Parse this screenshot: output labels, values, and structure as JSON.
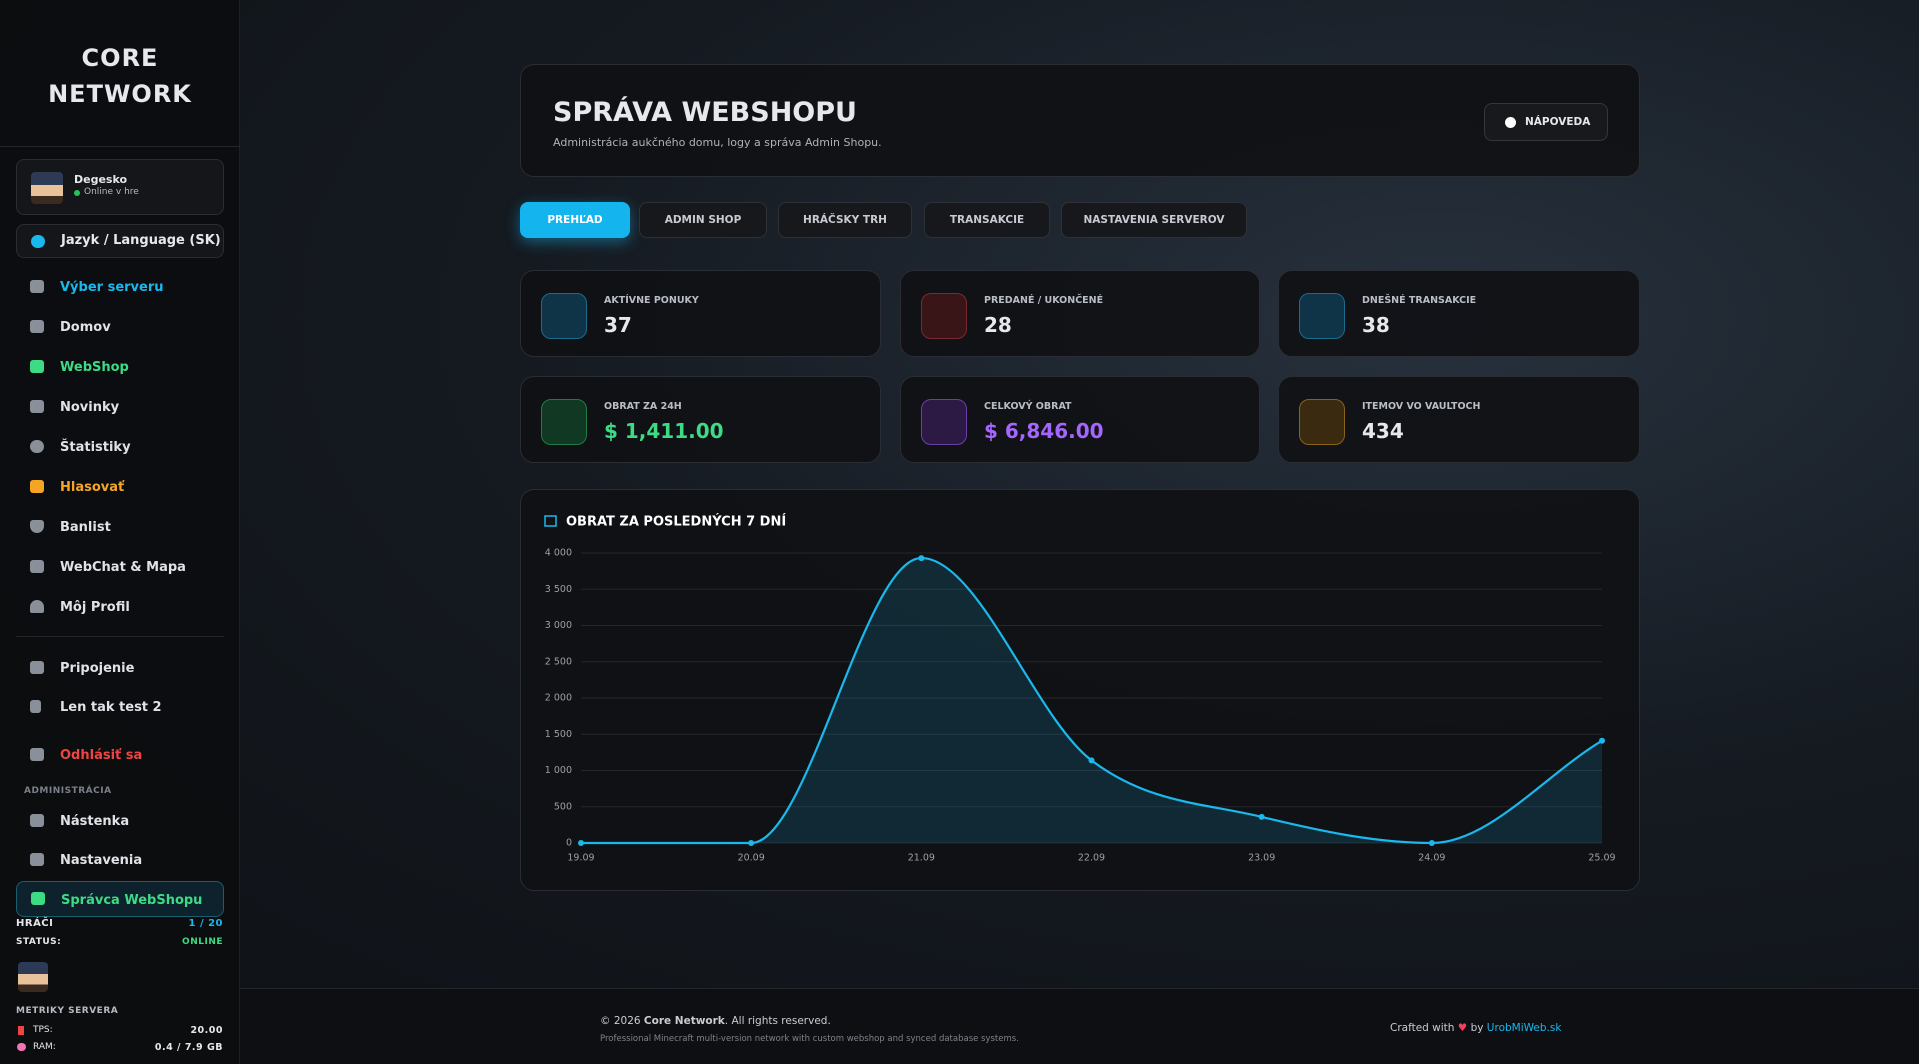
{
  "sidebar": {
    "brand": "CORE NETWORK",
    "user": {
      "name": "Degesko",
      "status": "Online v hre"
    },
    "language": "Jazyk / Language (SK)",
    "nav": [
      "Výber serveru",
      "Domov",
      "WebShop",
      "Novinky",
      "Štatistiky",
      "Hlasovať",
      "Banlist",
      "WebChat & Mapa",
      "Môj Profil"
    ],
    "extra": [
      "Pripojenie",
      "Len tak test 2"
    ],
    "logout": "Odhlásiť sa",
    "admin_heading": "ADMINISTRÁCIA",
    "admin": [
      "Nástenka",
      "Nastavenia",
      "Správca WebShopu"
    ],
    "players_label": "HRÁČI",
    "players_value": "1 / 20",
    "status_label": "STATUS:",
    "status_value": "ONLINE",
    "metrics_heading": "METRIKY SERVERA",
    "tps_label": "TPS:",
    "tps_value": "20.00",
    "ram_label": "RAM:",
    "ram_value": "0.4 / 7.9 GB"
  },
  "header": {
    "title": "SPRÁVA WEBSHOPU",
    "subtitle": "Administrácia aukčného domu, logy a správa Admin Shopu.",
    "help": "NÁPOVEDA"
  },
  "tabs": [
    "PREHĽAD",
    "ADMIN SHOP",
    "HRÁČSKY TRH",
    "TRANSAKCIE",
    "NASTAVENIA SERVEROV"
  ],
  "stats": [
    {
      "label": "AKTÍVNE PONUKY",
      "value": 37
    },
    {
      "label": "PREDANÉ / UKONČENÉ",
      "value": 28
    },
    {
      "label": "DNEŠNÉ TRANSAKCIE",
      "value": 38
    },
    {
      "label": "OBRAT ZA 24H",
      "value": "$ 1,411.00"
    },
    {
      "label": "CELKOVÝ OBRAT",
      "value": "$ 6,846.00"
    },
    {
      "label": "ITEMOV VO VAULTOCH",
      "value": 434
    }
  ],
  "chart_data": {
    "type": "area",
    "title": "OBRAT ZA POSLEDNÝCH 7 DNÍ",
    "categories": [
      "19.09",
      "20.09",
      "21.09",
      "22.09",
      "23.09",
      "24.09",
      "25.09"
    ],
    "values": [
      0,
      0,
      3930,
      1140,
      360,
      0,
      1411
    ],
    "color": "#1ab8ec",
    "ylim": [
      0,
      4000
    ],
    "yticks": [
      0,
      500,
      {
        "value": 1000,
        "label": "1 000"
      },
      {
        "value": 1500,
        "label": "1 500"
      },
      {
        "value": 2000,
        "label": "2 000"
      },
      {
        "value": 2500,
        "label": "2 500"
      },
      {
        "value": 3000,
        "label": "3 000"
      },
      {
        "value": 3500,
        "label": "3 500"
      },
      {
        "value": 4000,
        "label": "4 000"
      }
    ],
    "grid": true
  },
  "footer": {
    "copyright_pre": "© 2026 ",
    "copyright_brand": "Core Network",
    "copyright_post": ". All rights reserved.",
    "tagline": "Professional Minecraft multi-version network with custom webshop and synced database systems.",
    "crafted_pre": "Crafted with",
    "crafted_by": "by",
    "crafted_link": "UrobMiWeb.sk"
  }
}
